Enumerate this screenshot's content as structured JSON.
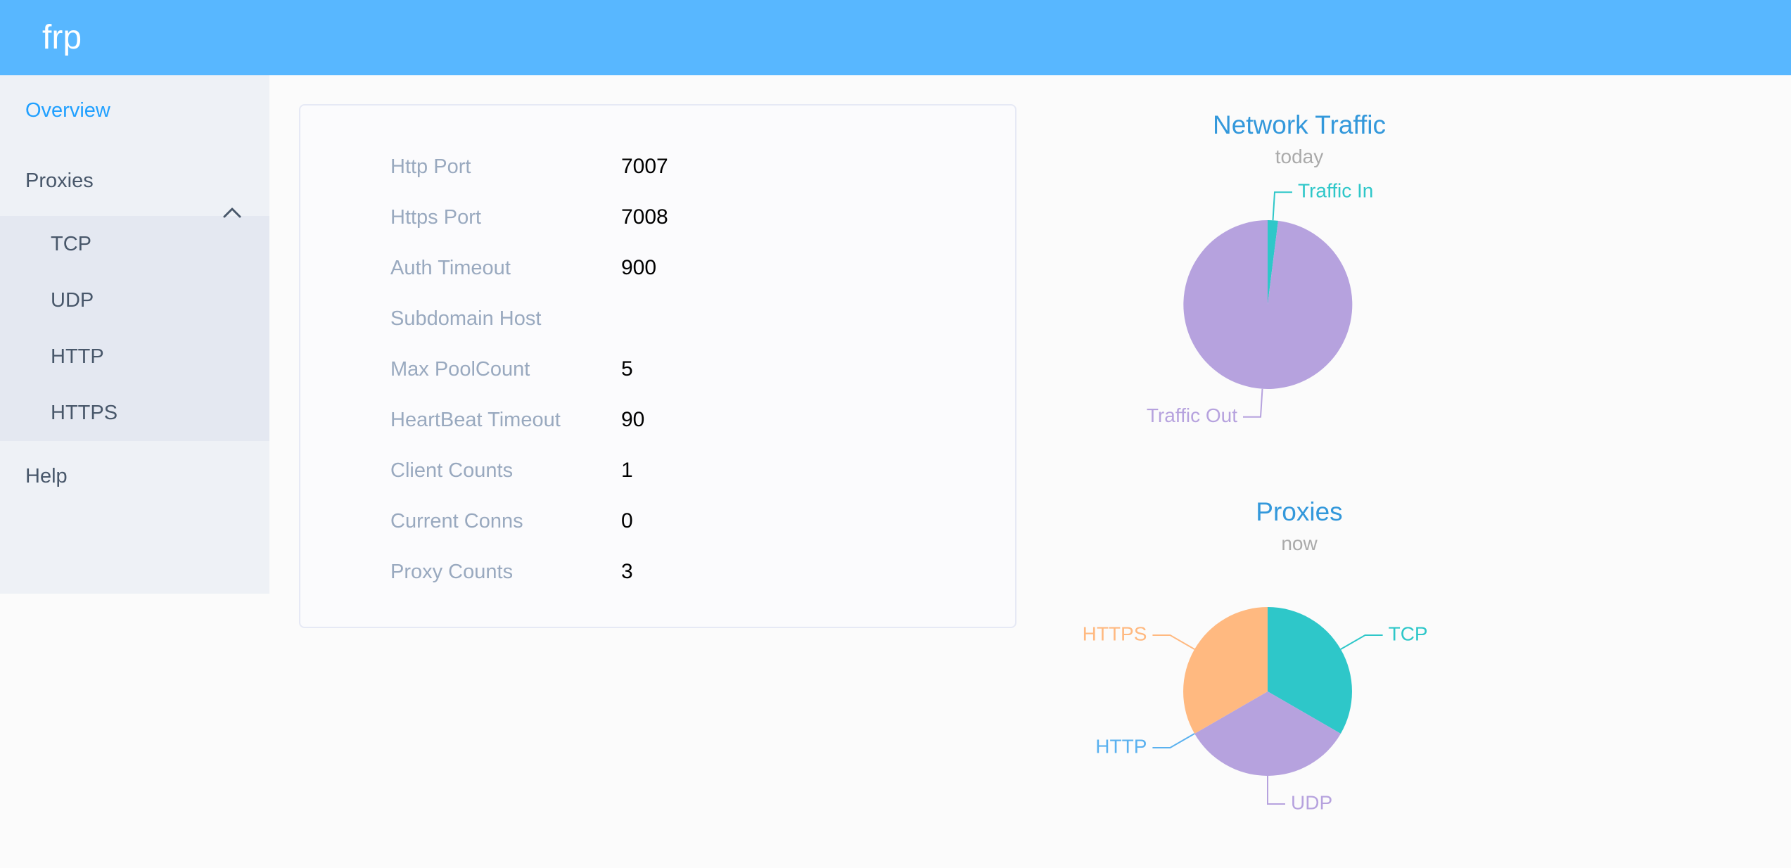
{
  "header": {
    "logo": "frp"
  },
  "sidebar": {
    "items": [
      {
        "label": "Overview",
        "active": true
      },
      {
        "label": "Proxies",
        "expanded": true,
        "children": [
          "TCP",
          "UDP",
          "HTTP",
          "HTTPS"
        ]
      },
      {
        "label": "Help"
      }
    ]
  },
  "server_info": {
    "rows": [
      {
        "label": "Http Port",
        "value": "7007"
      },
      {
        "label": "Https Port",
        "value": "7008"
      },
      {
        "label": "Auth Timeout",
        "value": "900"
      },
      {
        "label": "Subdomain Host",
        "value": ""
      },
      {
        "label": "Max PoolCount",
        "value": "5"
      },
      {
        "label": "HeartBeat Timeout",
        "value": "90"
      },
      {
        "label": "Client Counts",
        "value": "1"
      },
      {
        "label": "Current Conns",
        "value": "0"
      },
      {
        "label": "Proxy Counts",
        "value": "3"
      }
    ]
  },
  "chart_data": [
    {
      "type": "pie",
      "title": "Network Traffic",
      "subtitle": "today",
      "legend_position": "none",
      "series": [
        {
          "name": "Traffic In",
          "value": 2,
          "color": "#2ec7c9"
        },
        {
          "name": "Traffic Out",
          "value": 98,
          "color": "#b6a2de"
        }
      ]
    },
    {
      "type": "pie",
      "title": "Proxies",
      "subtitle": "now",
      "legend_position": "none",
      "series": [
        {
          "name": "TCP",
          "value": 1,
          "color": "#2ec7c9"
        },
        {
          "name": "UDP",
          "value": 1,
          "color": "#b6a2de"
        },
        {
          "name": "HTTP",
          "value": 0,
          "color": "#5ab1ef"
        },
        {
          "name": "HTTPS",
          "value": 1,
          "color": "#ffb980"
        }
      ]
    }
  ],
  "colors": {
    "header_bg": "#58b7ff",
    "sidebar_bg": "#eef1f6",
    "submenu_bg": "#e4e8f1",
    "menu_text": "#48576a",
    "active_menu_text": "#20a0ff",
    "chart_title": "#3398db",
    "chart_subtitle": "#aaaaaa",
    "config_label": "#99a9bf",
    "config_value": "#000000",
    "page_bg": "#fbfbfb"
  }
}
